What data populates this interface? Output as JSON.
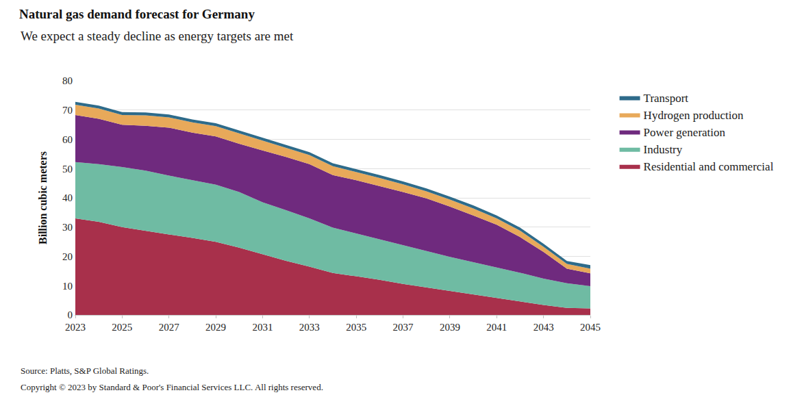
{
  "chart_data": {
    "type": "area",
    "title": "Natural gas demand forecast for Germany",
    "subtitle": "We expect a steady decline as energy targets are met",
    "y_label": "Billion cubic meters",
    "annotations": [
      "Source: Platts, S&P Global Ratings.",
      "Copyright © 2023 by Standard & Poor's Financial Services LLC. All rights reserved."
    ],
    "x": [
      2023,
      2024,
      2025,
      2026,
      2027,
      2028,
      2029,
      2030,
      2031,
      2032,
      2033,
      2034,
      2035,
      2036,
      2037,
      2038,
      2039,
      2040,
      2041,
      2042,
      2043,
      2044,
      2045
    ],
    "xlim": [
      2023,
      2045
    ],
    "xticks": [
      2023,
      2025,
      2027,
      2029,
      2031,
      2033,
      2035,
      2037,
      2039,
      2041,
      2043,
      2045
    ],
    "ylim": [
      0,
      80
    ],
    "yticks": [
      0,
      10,
      20,
      30,
      40,
      50,
      60,
      70,
      80
    ],
    "stacked": true,
    "grid": true,
    "legend": "right",
    "series": [
      {
        "name": "Residential and commercial",
        "color": "#a8304b",
        "values": [
          33,
          31.8,
          30,
          28.7,
          27.5,
          26.3,
          25,
          23,
          20.7,
          18.5,
          16.5,
          14.3,
          13.2,
          12,
          10.6,
          9.4,
          8.2,
          7,
          5.8,
          4.6,
          3.4,
          2.4,
          2.2
        ]
      },
      {
        "name": "Industry",
        "color": "#6fbba3",
        "values": [
          19.2,
          19.7,
          20.5,
          20.6,
          20.1,
          19.7,
          19.5,
          19,
          17.8,
          17.3,
          16.5,
          15.5,
          14.6,
          13.8,
          13.2,
          12.4,
          11.6,
          11,
          10.4,
          9.8,
          9,
          8.4,
          7.6
        ]
      },
      {
        "name": "Power generation",
        "color": "#6f2a7e",
        "values": [
          16.1,
          15.5,
          14.5,
          15.3,
          16.4,
          16.3,
          16.5,
          16.5,
          17.7,
          18.2,
          18.5,
          18,
          18.2,
          18.2,
          18.2,
          18,
          17.2,
          16,
          14.6,
          12.2,
          9.1,
          5,
          4.4
        ]
      },
      {
        "name": "Hydrogen production",
        "color": "#e8a95a",
        "values": [
          3.5,
          3.5,
          3.3,
          3.6,
          3.5,
          3.5,
          3.5,
          3.5,
          3.3,
          3,
          3.1,
          3,
          2.8,
          2.8,
          2.6,
          2.4,
          2.4,
          2.4,
          2.2,
          2.2,
          1.8,
          1.6,
          1.6
        ]
      },
      {
        "name": "Transport",
        "color": "#2e6b8a",
        "values": [
          1,
          1,
          1,
          1,
          1,
          1,
          1,
          1,
          1,
          1,
          1,
          1,
          1,
          1,
          1,
          1,
          1,
          1,
          1,
          1,
          1,
          1,
          1.2
        ]
      }
    ]
  }
}
